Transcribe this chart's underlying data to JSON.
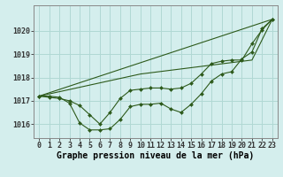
{
  "background_color": "#d4eeed",
  "grid_color": "#b0d8d4",
  "line_color": "#2d5a1b",
  "marker_color": "#2d5a1b",
  "title": "Graphe pression niveau de la mer (hPa)",
  "tick_fontsize": 6.0,
  "xlabel_fontsize": 7.0,
  "xlim": [
    -0.5,
    23.5
  ],
  "ylim": [
    1015.4,
    1021.1
  ],
  "yticks": [
    1016,
    1017,
    1018,
    1019,
    1020
  ],
  "xtick_labels": [
    "0",
    "1",
    "2",
    "3",
    "4",
    "5",
    "6",
    "7",
    "8",
    "9",
    "10",
    "11",
    "12",
    "13",
    "14",
    "15",
    "16",
    "17",
    "18",
    "19",
    "20",
    "21",
    "22",
    "23"
  ],
  "line1_x": [
    0,
    1,
    2,
    3,
    4,
    5,
    6,
    7,
    8,
    9,
    10,
    11,
    12,
    13,
    14,
    15,
    16,
    17,
    18,
    19,
    20,
    21,
    22,
    23
  ],
  "line1_y": [
    1017.2,
    1017.2,
    1017.15,
    1016.9,
    1016.05,
    1015.75,
    1015.75,
    1015.8,
    1016.2,
    1016.75,
    1016.85,
    1016.85,
    1016.9,
    1016.65,
    1016.5,
    1016.85,
    1017.3,
    1017.85,
    1018.15,
    1018.25,
    1018.8,
    1019.1,
    1020.1,
    1020.5
  ],
  "line2_x": [
    0,
    1,
    2,
    3,
    4,
    5,
    6,
    7,
    8,
    9,
    10,
    11,
    12,
    13,
    14,
    15,
    16,
    17,
    18,
    19,
    20,
    21,
    22,
    23
  ],
  "line2_y": [
    1017.2,
    1017.15,
    1017.1,
    1017.0,
    1016.8,
    1016.4,
    1016.0,
    1016.5,
    1017.1,
    1017.45,
    1017.5,
    1017.55,
    1017.55,
    1017.5,
    1017.55,
    1017.75,
    1018.15,
    1018.6,
    1018.7,
    1018.75,
    1018.75,
    1019.45,
    1020.05,
    1020.5
  ],
  "line3_x": [
    0,
    23
  ],
  "line3_y": [
    1017.2,
    1020.5
  ],
  "line4_x": [
    0,
    10,
    21,
    23
  ],
  "line4_y": [
    1017.2,
    1018.15,
    1018.75,
    1020.5
  ]
}
